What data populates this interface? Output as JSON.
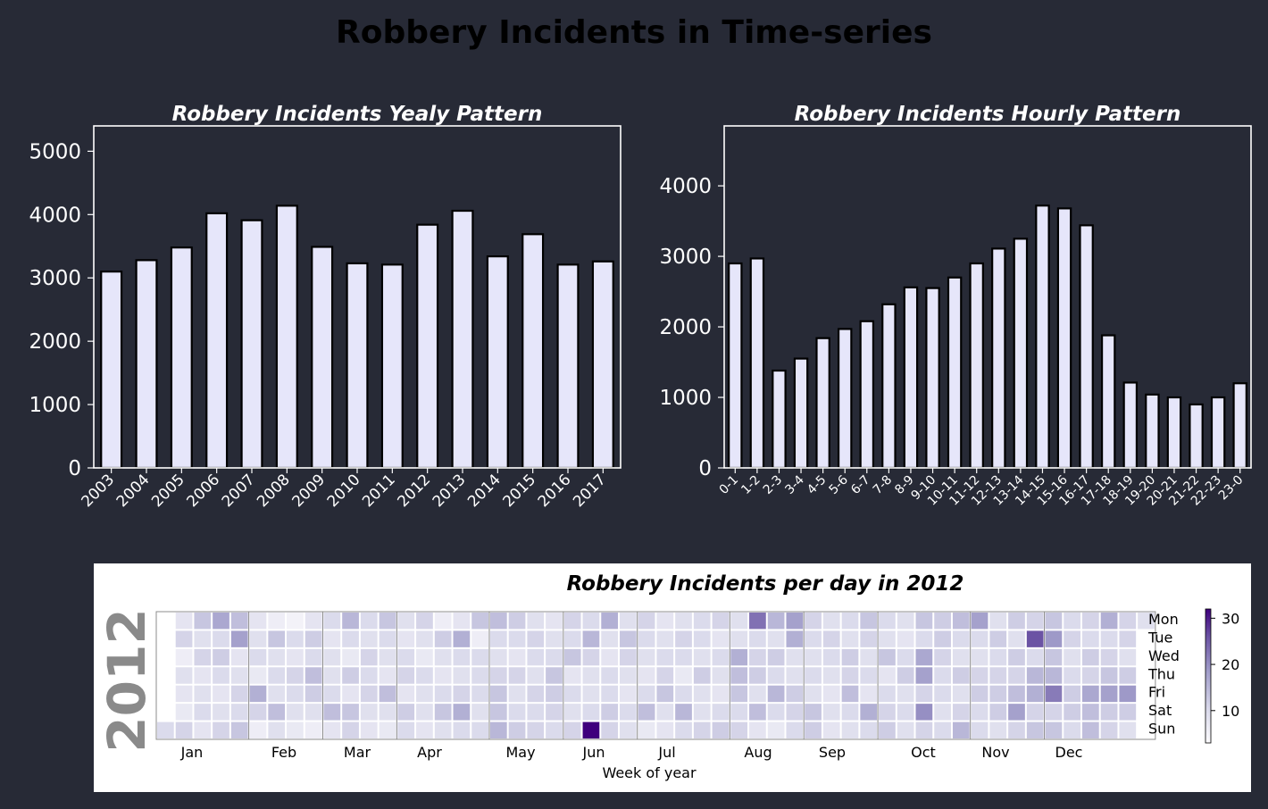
{
  "figure": {
    "title": "Robbery Incidents in Time-series",
    "background": "#272a36"
  },
  "chart_data": [
    {
      "type": "bar",
      "title": "Robbery Incidents Yealy Pattern",
      "xlabel": "",
      "ylabel": "",
      "categories": [
        "2003",
        "2004",
        "2005",
        "2006",
        "2007",
        "2008",
        "2009",
        "2010",
        "2011",
        "2012",
        "2013",
        "2014",
        "2015",
        "2016",
        "2017"
      ],
      "values": [
        3100,
        3280,
        3480,
        4020,
        3910,
        4140,
        3490,
        3230,
        3210,
        3840,
        4060,
        3340,
        3690,
        3210,
        3260
      ],
      "ylim": [
        0,
        5400
      ],
      "yticks": [
        "0",
        "1000",
        "2000",
        "3000",
        "4000",
        "5000"
      ],
      "bar_color": "#e6e6fa",
      "edge_color": "#000000",
      "grid": false
    },
    {
      "type": "bar",
      "title": "Robbery Incidents Hourly Pattern",
      "xlabel": "",
      "ylabel": "",
      "categories": [
        "0-1",
        "1-2",
        "2-3",
        "3-4",
        "4-5",
        "5-6",
        "6-7",
        "7-8",
        "8-9",
        "9-10",
        "10-11",
        "11-12",
        "12-13",
        "13-14",
        "14-15",
        "15-16",
        "16-17",
        "17-18",
        "18-19",
        "19-20",
        "20-21",
        "21-22",
        "22-23",
        "23-0"
      ],
      "values": [
        2900,
        2970,
        1380,
        1550,
        1840,
        1970,
        2080,
        2320,
        2560,
        2550,
        2700,
        2900,
        3110,
        3250,
        3720,
        3680,
        3440,
        1880,
        1210,
        1040,
        1000,
        900,
        1000,
        1200
      ],
      "ylim": [
        0,
        4850
      ],
      "yticks": [
        "0",
        "1000",
        "2000",
        "3000",
        "4000"
      ],
      "bar_color": "#e6e6fa",
      "edge_color": "#000000",
      "grid": false
    },
    {
      "type": "heatmap",
      "title": "Robbery Incidents per day in 2012",
      "year_label": "2012",
      "xlabel": "Week of year",
      "months": [
        "Jan",
        "Feb",
        "Mar",
        "Apr",
        "May",
        "Jun",
        "Jul",
        "Aug",
        "Sep",
        "Oct",
        "Nov",
        "Dec"
      ],
      "weekdays": [
        "Mon",
        "Tue",
        "Wed",
        "Thu",
        "Fri",
        "Sat",
        "Sun"
      ],
      "colorbar_ticks": [
        "10",
        "20",
        "30"
      ],
      "value_range": [
        3,
        32
      ],
      "cmap": [
        "#fcfbfd",
        "#dadaeb",
        "#9e9ac8",
        "#6a51a3",
        "#3f007d"
      ],
      "daily_values_mon_to_sun_by_week": [
        [
          null,
          null,
          null,
          null,
          null,
          null,
          10
        ],
        [
          8,
          11,
          6,
          9,
          8,
          7,
          11
        ],
        [
          13,
          9,
          11,
          8,
          9,
          10,
          8
        ],
        [
          17,
          10,
          12,
          10,
          8,
          9,
          11
        ],
        [
          14,
          18,
          8,
          9,
          11,
          10,
          13
        ],
        [
          8,
          9,
          10,
          7,
          16,
          11,
          6
        ],
        [
          6,
          13,
          9,
          10,
          9,
          14,
          9
        ],
        [
          5,
          10,
          8,
          11,
          10,
          9,
          7
        ],
        [
          8,
          12,
          10,
          14,
          12,
          9,
          6
        ],
        [
          10,
          8,
          9,
          9,
          10,
          14,
          8
        ],
        [
          15,
          10,
          7,
          12,
          8,
          13,
          11
        ],
        [
          10,
          9,
          11,
          10,
          11,
          9,
          8
        ],
        [
          13,
          10,
          9,
          8,
          14,
          9,
          7
        ],
        [
          9,
          8,
          10,
          11,
          8,
          12,
          10
        ],
        [
          11,
          9,
          7,
          10,
          9,
          9,
          8
        ],
        [
          6,
          12,
          9,
          8,
          10,
          13,
          9
        ],
        [
          8,
          16,
          10,
          9,
          11,
          16,
          10
        ],
        [
          13,
          6,
          10,
          10,
          10,
          9,
          10
        ],
        [
          14,
          10,
          9,
          11,
          13,
          13,
          15
        ],
        [
          12,
          10,
          8,
          11,
          9,
          10,
          12
        ],
        [
          9,
          11,
          10,
          9,
          11,
          10,
          11
        ],
        [
          8,
          9,
          10,
          13,
          12,
          11,
          10
        ],
        [
          11,
          10,
          13,
          8,
          10,
          9,
          11
        ],
        [
          10,
          15,
          11,
          9,
          9,
          10,
          32
        ],
        [
          16,
          9,
          8,
          10,
          10,
          12,
          11
        ],
        [
          9,
          13,
          11,
          9,
          8,
          10,
          9
        ],
        [
          11,
          10,
          9,
          8,
          10,
          14,
          7
        ],
        [
          8,
          9,
          10,
          11,
          13,
          9,
          8
        ],
        [
          9,
          11,
          10,
          7,
          10,
          15,
          10
        ],
        [
          10,
          10,
          9,
          12,
          9,
          9,
          11
        ],
        [
          11,
          8,
          10,
          9,
          8,
          10,
          12
        ],
        [
          9,
          9,
          16,
          14,
          13,
          10,
          11
        ],
        [
          23,
          10,
          11,
          12,
          9,
          14,
          8
        ],
        [
          15,
          9,
          12,
          10,
          15,
          10,
          7
        ],
        [
          18,
          16,
          9,
          9,
          12,
          11,
          10
        ],
        [
          11,
          10,
          9,
          10,
          9,
          13,
          12
        ],
        [
          9,
          11,
          10,
          9,
          8,
          9,
          8
        ],
        [
          10,
          9,
          12,
          11,
          14,
          10,
          9
        ],
        [
          13,
          11,
          9,
          10,
          8,
          16,
          10
        ],
        [
          10,
          9,
          13,
          8,
          10,
          11,
          12
        ],
        [
          9,
          8,
          10,
          12,
          9,
          10,
          9
        ],
        [
          13,
          10,
          17,
          18,
          11,
          20,
          11
        ],
        [
          12,
          12,
          11,
          10,
          10,
          9,
          10
        ],
        [
          14,
          10,
          9,
          12,
          9,
          11,
          15
        ],
        [
          18,
          10,
          9,
          11,
          12,
          10,
          10
        ],
        [
          9,
          12,
          10,
          11,
          12,
          12,
          9
        ],
        [
          12,
          9,
          12,
          11,
          14,
          18,
          11
        ],
        [
          11,
          26,
          10,
          15,
          16,
          11,
          13
        ],
        [
          13,
          19,
          13,
          15,
          22,
          11,
          13
        ],
        [
          10,
          11,
          9,
          10,
          12,
          12,
          10
        ],
        [
          11,
          10,
          12,
          11,
          17,
          14,
          14
        ],
        [
          16,
          10,
          11,
          13,
          18,
          12,
          11
        ],
        [
          11,
          11,
          9,
          12,
          19,
          12,
          9
        ],
        [
          9,
          null,
          null,
          null,
          null,
          null,
          null
        ]
      ]
    }
  ]
}
